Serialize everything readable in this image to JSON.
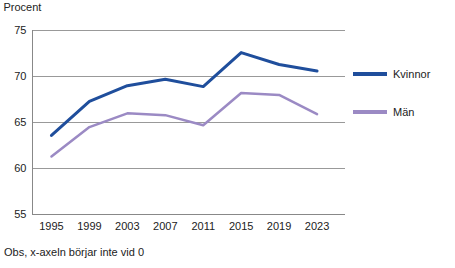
{
  "chart_data": {
    "type": "line",
    "y_label": "Procent",
    "note": "Obs, x-axeln börjar inte vid 0",
    "x": [
      1995,
      1999,
      2003,
      2007,
      2011,
      2015,
      2019,
      2023
    ],
    "series": [
      {
        "name": "Kvinnor",
        "color": "#1f4e9c",
        "values": [
          63.6,
          67.3,
          69.0,
          69.7,
          68.9,
          72.6,
          71.3,
          70.6
        ]
      },
      {
        "name": "Män",
        "color": "#9b8ac4",
        "values": [
          61.3,
          64.5,
          66.0,
          65.8,
          64.7,
          68.2,
          68.0,
          65.9
        ]
      }
    ],
    "xlim": [
      1993,
      2026
    ],
    "xticks": [
      1995,
      1999,
      2003,
      2007,
      2011,
      2015,
      2019,
      2023
    ],
    "ylim": [
      55,
      75
    ],
    "yticks": [
      55,
      60,
      65,
      70,
      75
    ],
    "grid": true,
    "legend": "right"
  }
}
